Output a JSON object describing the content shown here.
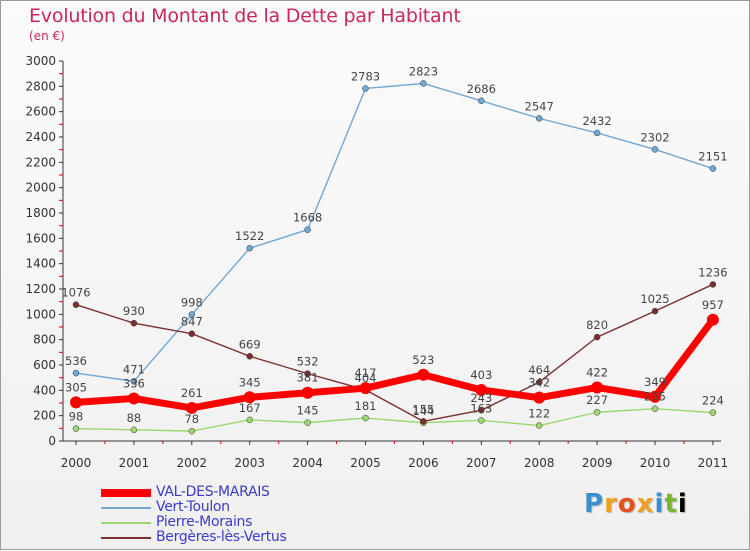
{
  "title": "Evolution du Montant de la Dette par Habitant",
  "subtitle": "(en €)",
  "logo_text": "Proxiti",
  "chart_data": {
    "type": "line",
    "title": "Evolution du Montant de la Dette par Habitant",
    "subtitle": "(en €)",
    "x": [
      "2000",
      "2001",
      "2002",
      "2003",
      "2004",
      "2005",
      "2006",
      "2007",
      "2008",
      "2009",
      "2010",
      "2011"
    ],
    "ylim": [
      0,
      3000
    ],
    "yticks": [
      0,
      200,
      400,
      600,
      800,
      1000,
      1200,
      1400,
      1600,
      1800,
      2000,
      2200,
      2400,
      2600,
      2800,
      3000
    ],
    "grid": false,
    "legend_position": "bottom-left",
    "series": [
      {
        "name": "Vert-Toulon",
        "color": "#6fa8d6",
        "values": [
          536,
          471,
          998,
          1522,
          1668,
          2783,
          2823,
          2686,
          2547,
          2432,
          2302,
          2151
        ]
      },
      {
        "name": "Pierre-Morains",
        "color": "#9bd870",
        "values": [
          98,
          88,
          78,
          167,
          145,
          181,
          144,
          163,
          122,
          227,
          255,
          224
        ]
      },
      {
        "name": "Bergères-lès-Vertus",
        "color": "#7b2f2f",
        "values": [
          1076,
          930,
          847,
          669,
          532,
          404,
          155,
          243,
          464,
          820,
          1025,
          1236
        ]
      },
      {
        "name": "VAL-DES-MARAIS",
        "color": "#ff0000",
        "values": [
          305,
          336,
          261,
          345,
          381,
          417,
          523,
          403,
          342,
          422,
          349,
          957
        ]
      }
    ]
  }
}
